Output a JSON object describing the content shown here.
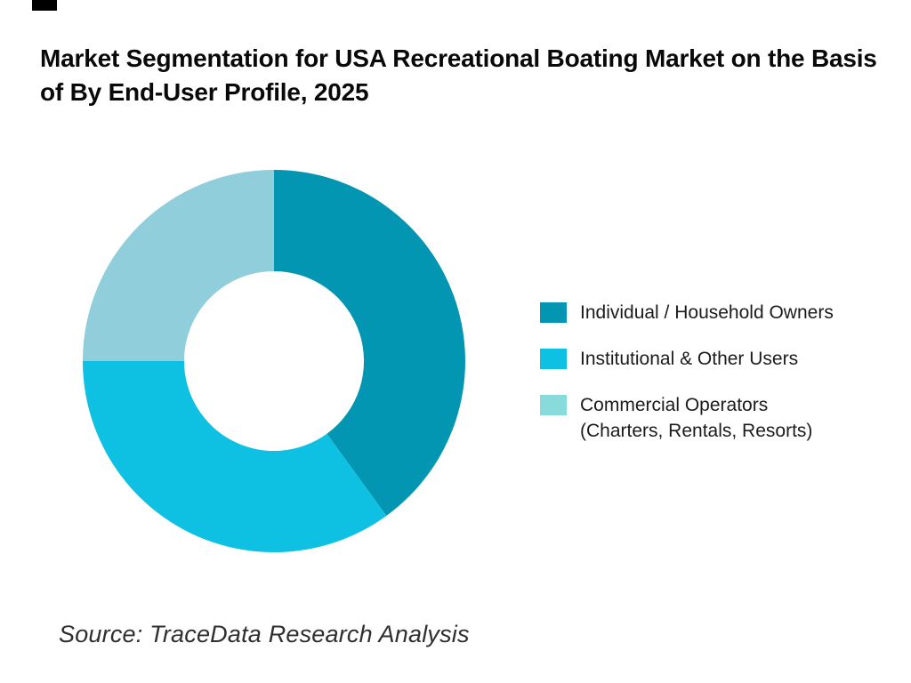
{
  "title": {
    "text": "Market Segmentation for USA Recreational Boating Market on the Basis of By End-User Profile, 2025"
  },
  "source": {
    "text": "Source: TraceData Research Analysis"
  },
  "decoration": {
    "top_left_bar_color": "#000000"
  },
  "chart_data": {
    "type": "pie",
    "subtype": "donut",
    "title": "Market Segmentation for USA Recreational Boating Market on the Basis of By End-User Profile, 2025",
    "categories": [
      "Individual / Household Owners",
      "Institutional & Other Users",
      "Commercial Operators (Charters, Rentals, Resorts)"
    ],
    "values": [
      40,
      35,
      25
    ],
    "unit": "%",
    "angles_deg": [
      144,
      126,
      90
    ],
    "colors": [
      "#0396B2",
      "#0EC0E1",
      "#8FCEDA"
    ],
    "start_angle_deg": 0,
    "direction": "clockwise",
    "inner_radius_ratio": 0.47,
    "outer_radius_px": 215,
    "data_labels": "none",
    "legend_position": "right"
  },
  "legend": {
    "items": [
      {
        "label": "Individual / Household Owners",
        "color": "#0396B2"
      },
      {
        "label": "Institutional & Other Users",
        "color": "#0EC0E1"
      },
      {
        "label": "Commercial Operators",
        "label2": "(Charters, Rentals, Resorts)",
        "color": "#88DADB"
      }
    ]
  }
}
